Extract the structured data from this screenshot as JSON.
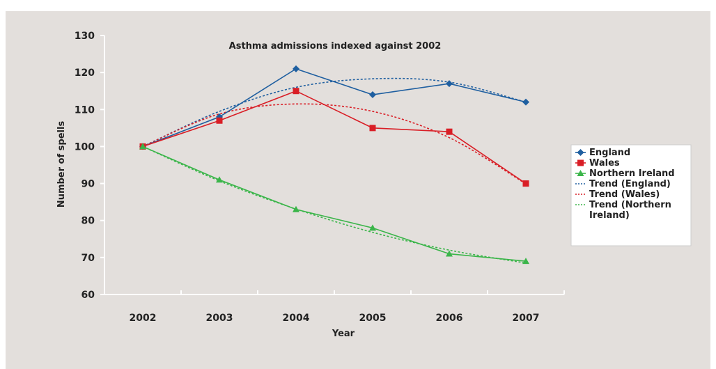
{
  "chart_data": {
    "type": "line",
    "title": "Asthma admissions indexed against 2002",
    "xlabel": "Year",
    "ylabel": "Number of spells",
    "categories": [
      "2002",
      "2003",
      "2004",
      "2005",
      "2006",
      "2007"
    ],
    "ylim": [
      60,
      130
    ],
    "yticks": [
      60,
      70,
      80,
      90,
      100,
      110,
      120,
      130
    ],
    "grid": false,
    "legend_position": "right",
    "series": [
      {
        "name": "England",
        "values": [
          100,
          108,
          121,
          114,
          117,
          112
        ],
        "color": "#1f5fa0",
        "marker": "diamond",
        "style": "solid"
      },
      {
        "name": "Wales",
        "values": [
          100,
          107,
          115,
          105,
          104,
          90
        ],
        "color": "#d91e26",
        "marker": "square",
        "style": "solid"
      },
      {
        "name": "Northern Ireland",
        "values": [
          100,
          91,
          83,
          78,
          71,
          69
        ],
        "color": "#3bb54a",
        "marker": "triangle",
        "style": "solid"
      },
      {
        "name": "Trend (England)",
        "values": [
          100,
          109.5,
          116,
          118.3,
          117.4,
          112
        ],
        "color": "#1f5fa0",
        "style": "dotted"
      },
      {
        "name": "Trend (Wales)",
        "values": [
          100,
          108.8,
          111.5,
          109.5,
          102.4,
          89.9
        ],
        "color": "#d91e26",
        "style": "dotted"
      },
      {
        "name": "Trend (Northern Ireland)",
        "values": [
          100,
          90.7,
          83.1,
          76.8,
          72,
          68.5
        ],
        "color": "#3bb54a",
        "style": "dotted"
      }
    ]
  }
}
